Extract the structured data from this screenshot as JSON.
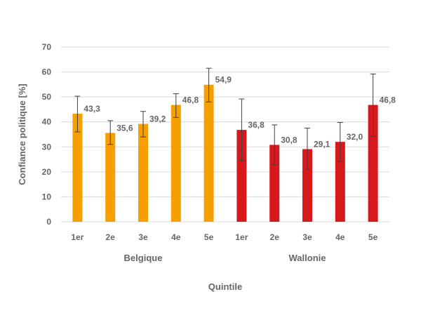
{
  "chart_data": {
    "type": "bar",
    "title": "",
    "xlabel": "Quintile",
    "ylabel": "Confiance politique [%]",
    "ylim": [
      0,
      70
    ],
    "yticks": [
      0,
      10,
      20,
      30,
      40,
      50,
      60,
      70
    ],
    "grid": true,
    "legend": "none",
    "groups": [
      {
        "name": "Belgique",
        "color": "#F5A000",
        "categories": [
          "1er",
          "2e",
          "3e",
          "4e",
          "5e"
        ],
        "values": [
          43.3,
          35.6,
          39.2,
          46.8,
          54.9
        ],
        "value_labels": [
          "43,3",
          "35,6",
          "39,2",
          "46,8",
          "54,9"
        ],
        "error_low": [
          36.0,
          31.0,
          34.0,
          41.8,
          48.0
        ],
        "error_high": [
          50.3,
          40.5,
          44.2,
          51.3,
          61.5
        ]
      },
      {
        "name": "Wallonie",
        "color": "#D7191C",
        "categories": [
          "1er",
          "2e",
          "3e",
          "4e",
          "5e"
        ],
        "values": [
          36.8,
          30.8,
          29.1,
          32.0,
          46.8
        ],
        "value_labels": [
          "36,8",
          "30,8",
          "29,1",
          "32,0",
          "46,8"
        ],
        "error_low": [
          24.5,
          22.8,
          21.0,
          24.2,
          34.3
        ],
        "error_high": [
          49.2,
          38.8,
          37.5,
          39.8,
          59.2
        ]
      }
    ]
  }
}
